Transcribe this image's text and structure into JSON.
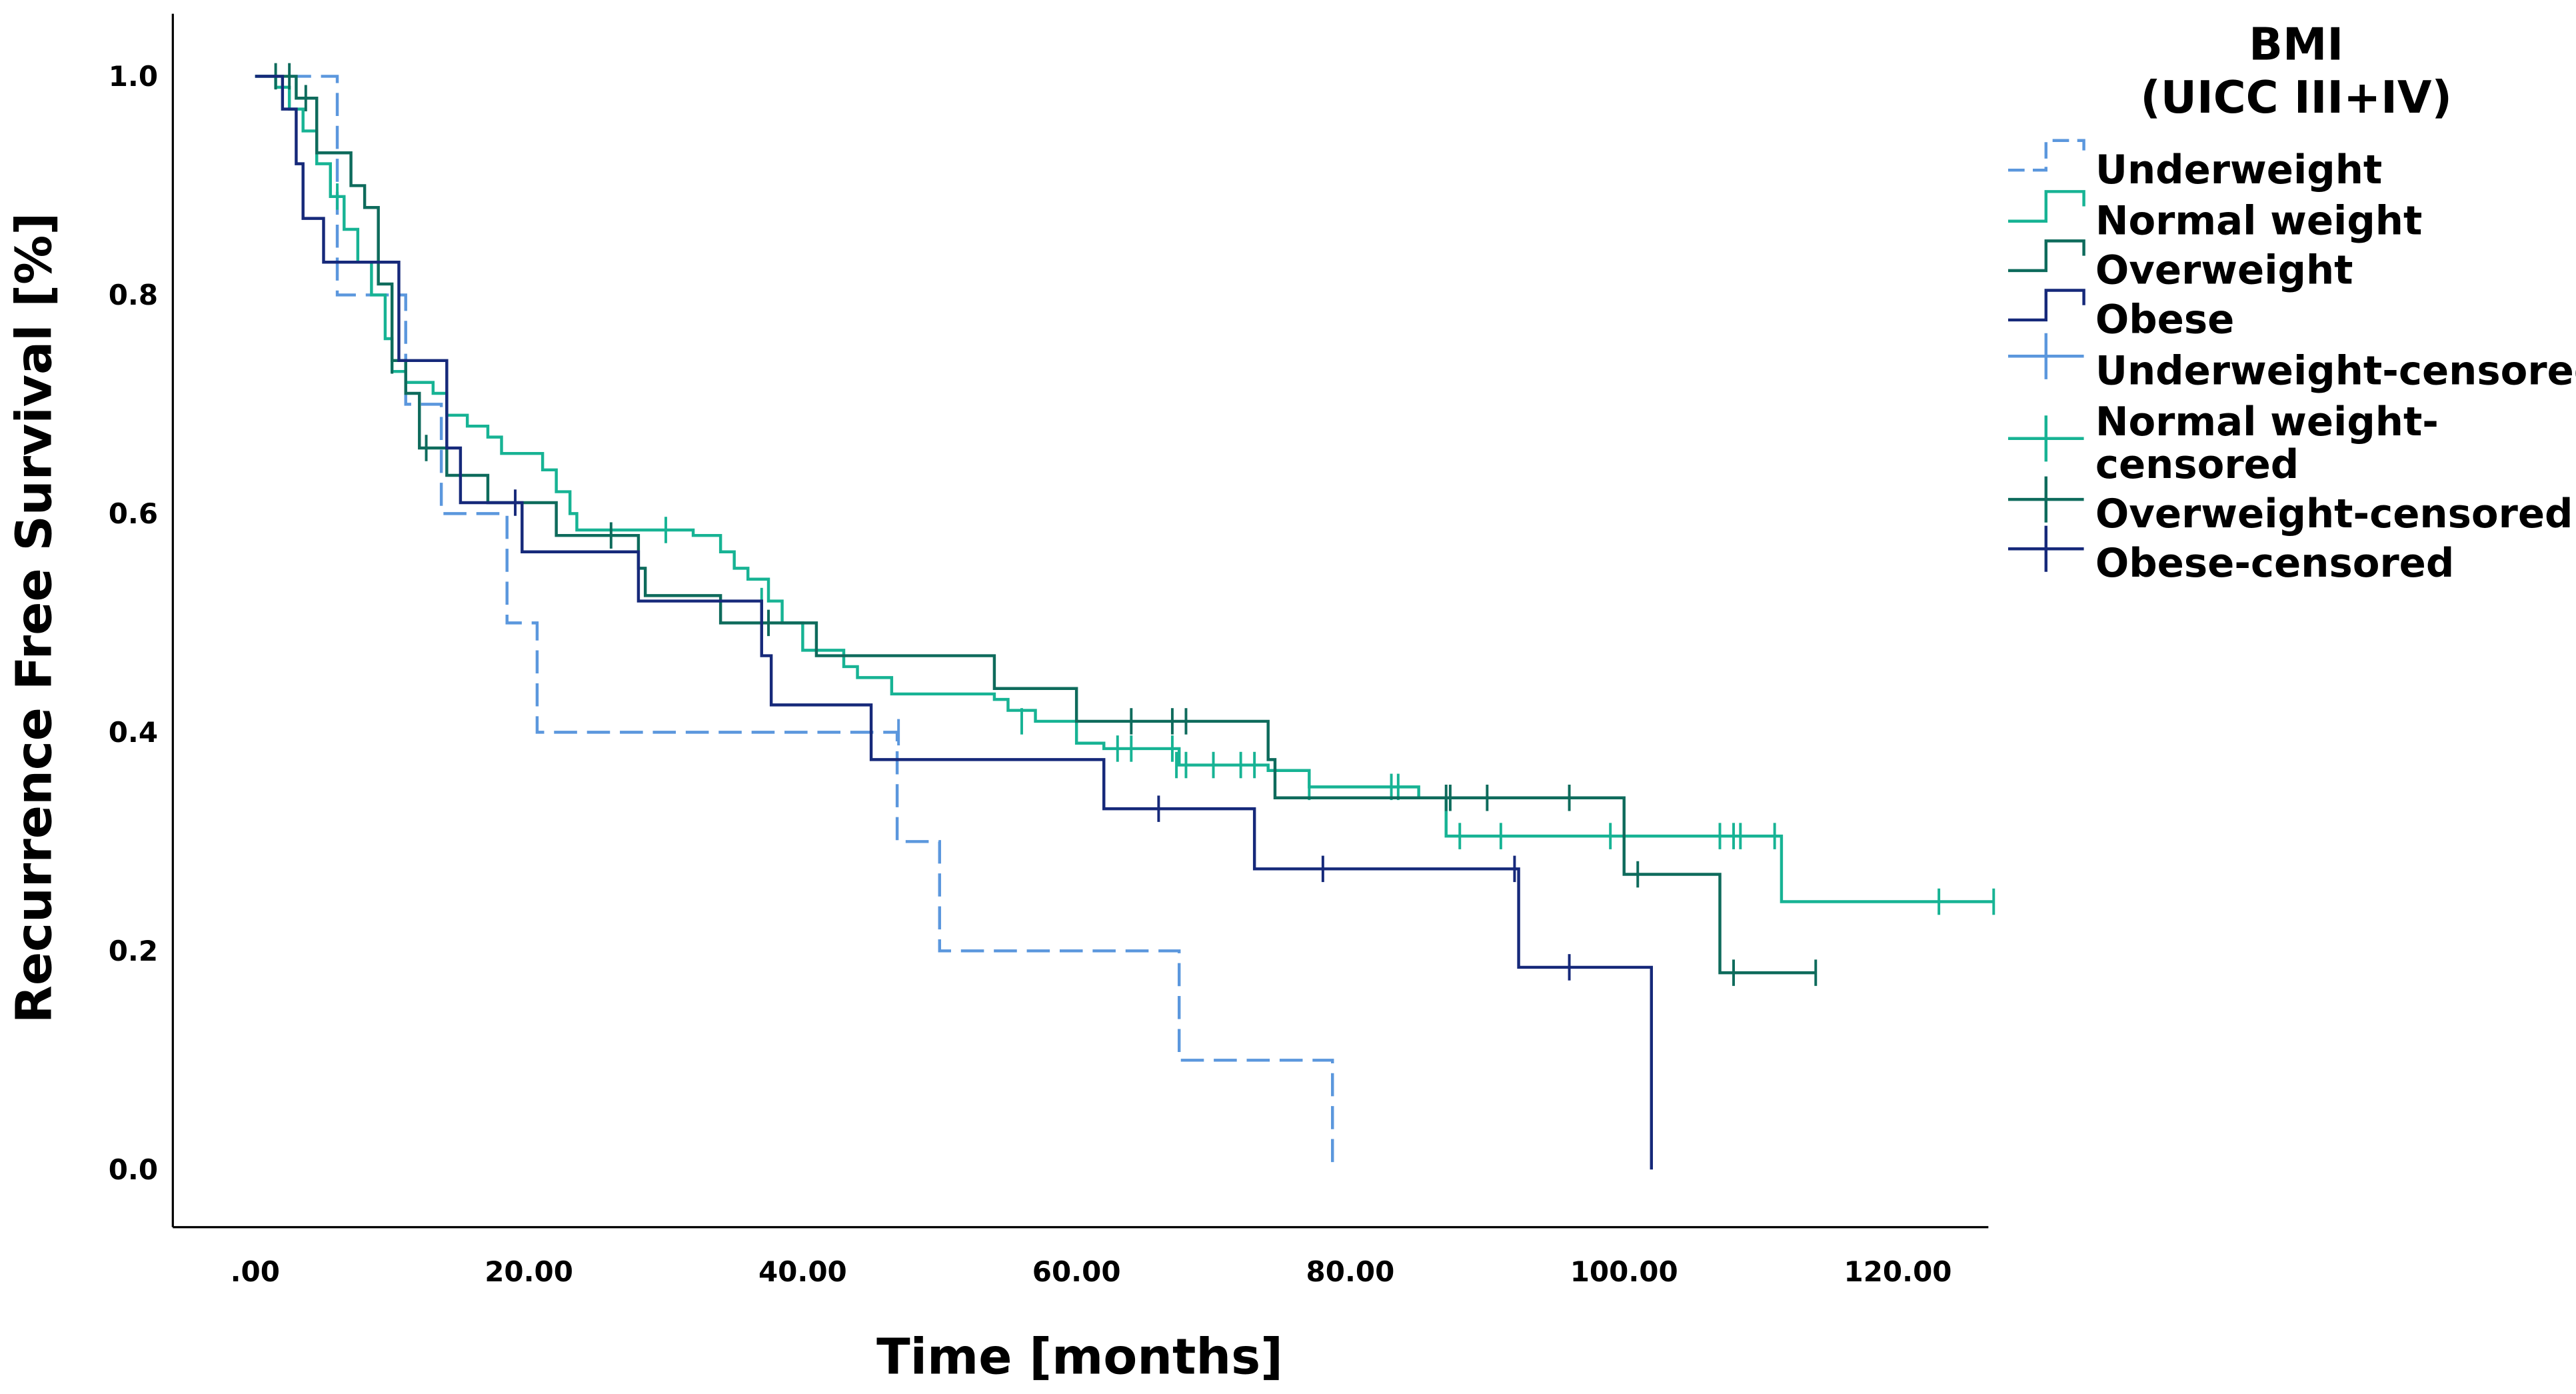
{
  "chart_data": {
    "type": "line",
    "subtype": "kaplan-meier step",
    "xlabel": "Time [months]",
    "ylabel": "Recurrence Free Survival [%]",
    "xlim": [
      -6,
      127
    ],
    "ylim": [
      -0.05,
      1.05
    ],
    "xticks": [
      0,
      20,
      40,
      60,
      80,
      100,
      120
    ],
    "xtick_labels": [
      ".00",
      "20.00",
      "40.00",
      "60.00",
      "80.00",
      "100.00",
      "120.00"
    ],
    "yticks": [
      0,
      0.2,
      0.4,
      0.6,
      0.8,
      1.0
    ],
    "ytick_labels": [
      "0.0",
      "0.2",
      "0.4",
      "0.6",
      "0.8",
      "1.0"
    ],
    "grid": false,
    "legend": {
      "title_line1": "BMI",
      "title_line2": "(UICC III+IV)",
      "placement": "right",
      "entries": [
        "Underweight",
        "Normal weight",
        "Overweight",
        "Obese",
        "Underweight-censored",
        "Normal weight-",
        "censored",
        "Overweight-censored",
        "Obese-censored"
      ]
    },
    "series": [
      {
        "name": "Underweight",
        "color": "#5b97dd",
        "dashed": true,
        "steps": [
          [
            0,
            1.0
          ],
          [
            6,
            0.8
          ],
          [
            11,
            0.7
          ],
          [
            13.6,
            0.6
          ],
          [
            18.4,
            0.5
          ],
          [
            20.6,
            0.4
          ],
          [
            46.9,
            0.3
          ],
          [
            50,
            0.2
          ],
          [
            67.5,
            0.1
          ],
          [
            78.7,
            0.0
          ]
        ],
        "end": 78.7,
        "censored": [
          [
            47,
            0.4
          ]
        ]
      },
      {
        "name": "Normal weight",
        "color": "#17b394",
        "dashed": false,
        "steps": [
          [
            0,
            1.0
          ],
          [
            1.5,
            0.99
          ],
          [
            2.5,
            0.97
          ],
          [
            3.5,
            0.95
          ],
          [
            4.5,
            0.92
          ],
          [
            5.5,
            0.89
          ],
          [
            6.5,
            0.86
          ],
          [
            7.5,
            0.83
          ],
          [
            8.5,
            0.8
          ],
          [
            9.5,
            0.76
          ],
          [
            10,
            0.73
          ],
          [
            11,
            0.72
          ],
          [
            13,
            0.71
          ],
          [
            14,
            0.69
          ],
          [
            15.5,
            0.68
          ],
          [
            17,
            0.67
          ],
          [
            18,
            0.655
          ],
          [
            21,
            0.64
          ],
          [
            22,
            0.62
          ],
          [
            23,
            0.6
          ],
          [
            23.5,
            0.585
          ],
          [
            32,
            0.58
          ],
          [
            34,
            0.565
          ],
          [
            35,
            0.55
          ],
          [
            36,
            0.54
          ],
          [
            37.5,
            0.52
          ],
          [
            38.5,
            0.5
          ],
          [
            40,
            0.475
          ],
          [
            43,
            0.46
          ],
          [
            44,
            0.45
          ],
          [
            46.5,
            0.435
          ],
          [
            54,
            0.43
          ],
          [
            55,
            0.42
          ],
          [
            57,
            0.41
          ],
          [
            60,
            0.39
          ],
          [
            62,
            0.385
          ],
          [
            67.5,
            0.37
          ],
          [
            74,
            0.365
          ],
          [
            77,
            0.35
          ],
          [
            85,
            0.34
          ],
          [
            87,
            0.305
          ],
          [
            111.5,
            0.245
          ]
        ],
        "end": 127,
        "censored": [
          [
            6,
            0.89
          ],
          [
            30,
            0.585
          ],
          [
            37,
            0.52
          ],
          [
            56,
            0.41
          ],
          [
            63,
            0.385
          ],
          [
            64,
            0.385
          ],
          [
            67,
            0.385
          ],
          [
            67.3,
            0.37
          ],
          [
            68,
            0.37
          ],
          [
            70,
            0.37
          ],
          [
            72,
            0.37
          ],
          [
            73,
            0.37
          ],
          [
            77,
            0.35
          ],
          [
            83,
            0.35
          ],
          [
            83.5,
            0.35
          ],
          [
            88,
            0.305
          ],
          [
            91,
            0.305
          ],
          [
            99,
            0.305
          ],
          [
            107,
            0.305
          ],
          [
            108,
            0.305
          ],
          [
            108.5,
            0.305
          ],
          [
            111,
            0.305
          ],
          [
            123,
            0.245
          ],
          [
            127,
            0.245
          ]
        ]
      },
      {
        "name": "Overweight",
        "color": "#0e6b5c",
        "dashed": false,
        "steps": [
          [
            0,
            1.0
          ],
          [
            3,
            0.98
          ],
          [
            4.5,
            0.93
          ],
          [
            7,
            0.9
          ],
          [
            8,
            0.88
          ],
          [
            9,
            0.81
          ],
          [
            10,
            0.74
          ],
          [
            11,
            0.71
          ],
          [
            12,
            0.66
          ],
          [
            14,
            0.635
          ],
          [
            17,
            0.61
          ],
          [
            22,
            0.58
          ],
          [
            28,
            0.55
          ],
          [
            28.5,
            0.525
          ],
          [
            34,
            0.5
          ],
          [
            41,
            0.47
          ],
          [
            54,
            0.44
          ],
          [
            60,
            0.41
          ],
          [
            74,
            0.375
          ],
          [
            74.5,
            0.34
          ],
          [
            89,
            0.34
          ],
          [
            100,
            0.27
          ],
          [
            107,
            0.18
          ]
        ],
        "end": 114,
        "censored": [
          [
            1.5,
            1.0
          ],
          [
            2.5,
            1.0
          ],
          [
            3.7,
            0.98
          ],
          [
            10,
            0.74
          ],
          [
            12.5,
            0.66
          ],
          [
            26,
            0.58
          ],
          [
            37.5,
            0.5
          ],
          [
            64,
            0.41
          ],
          [
            67,
            0.41
          ],
          [
            68,
            0.41
          ],
          [
            87,
            0.34
          ],
          [
            87.3,
            0.34
          ],
          [
            90,
            0.34
          ],
          [
            96,
            0.34
          ],
          [
            101,
            0.27
          ],
          [
            108,
            0.18
          ],
          [
            114,
            0.18
          ]
        ]
      },
      {
        "name": "Obese",
        "color": "#16297a",
        "dashed": false,
        "steps": [
          [
            0,
            1.0
          ],
          [
            2,
            0.97
          ],
          [
            3,
            0.92
          ],
          [
            3.5,
            0.87
          ],
          [
            5,
            0.83
          ],
          [
            10.5,
            0.74
          ],
          [
            14,
            0.66
          ],
          [
            15,
            0.61
          ],
          [
            19.5,
            0.565
          ],
          [
            28,
            0.52
          ],
          [
            37,
            0.47
          ],
          [
            37.7,
            0.425
          ],
          [
            45,
            0.375
          ],
          [
            62,
            0.33
          ],
          [
            73,
            0.275
          ],
          [
            92.3,
            0.185
          ],
          [
            102,
            0.0
          ]
        ],
        "end": 102,
        "censored": [
          [
            19,
            0.61
          ],
          [
            66,
            0.33
          ],
          [
            78,
            0.275
          ],
          [
            92,
            0.275
          ],
          [
            96,
            0.185
          ]
        ]
      }
    ]
  }
}
